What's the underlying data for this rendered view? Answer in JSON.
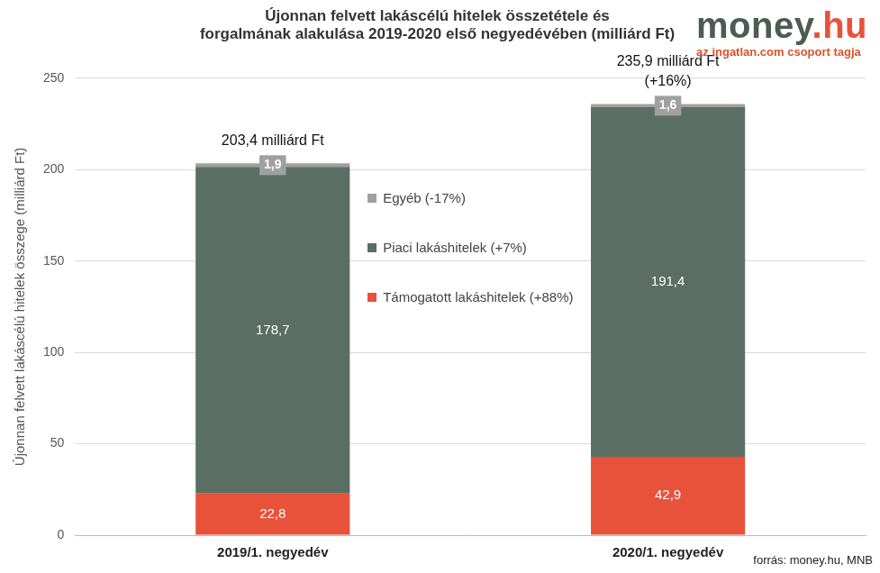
{
  "chart_data": {
    "type": "bar",
    "title": [
      "Újonnan felvett lakáscélú hitelek összetétele és",
      "forgalmának alakulása 2019-2020 első negyedévében (milliárd Ft)"
    ],
    "y_label": "Újonnan felvett lakáscélú hitelek összege (milliárd Ft)",
    "categories": [
      "2019/1. negyedév",
      "2020/1. negyedév"
    ],
    "series": [
      {
        "name": "Támogatott lakáshitelek (+88%)",
        "color": "#e8523a",
        "values": [
          22.8,
          42.9
        ],
        "value_labels": [
          "22,8",
          "42,9"
        ]
      },
      {
        "name": "Piaci lakáshitelek (+7%)",
        "color": "#5b6e63",
        "values": [
          178.7,
          191.4
        ],
        "value_labels": [
          "178,7",
          "191,4"
        ]
      },
      {
        "name": "Egyéb (-17%)",
        "color": "#a0a0a0",
        "values": [
          1.9,
          1.6
        ],
        "value_labels": [
          "1,9",
          "1,6"
        ]
      }
    ],
    "stacked": true,
    "data_labels": true,
    "ylim": [
      0,
      250
    ],
    "yticks": [
      0,
      50,
      100,
      150,
      200,
      250
    ],
    "grid": true,
    "legend": "center",
    "annotations": [
      {
        "category": "2019/1. negyedév",
        "text": [
          "203,4 milliárd Ft"
        ]
      },
      {
        "category": "2020/1. negyedév",
        "text": [
          "235,9 milliárd Ft",
          "(+16%)"
        ]
      }
    ],
    "source": "forrás: money.hu, MNB",
    "logo": {
      "text": [
        "money",
        ".hu"
      ],
      "subtitle": "az ingatlan.com csoport tagja"
    }
  }
}
